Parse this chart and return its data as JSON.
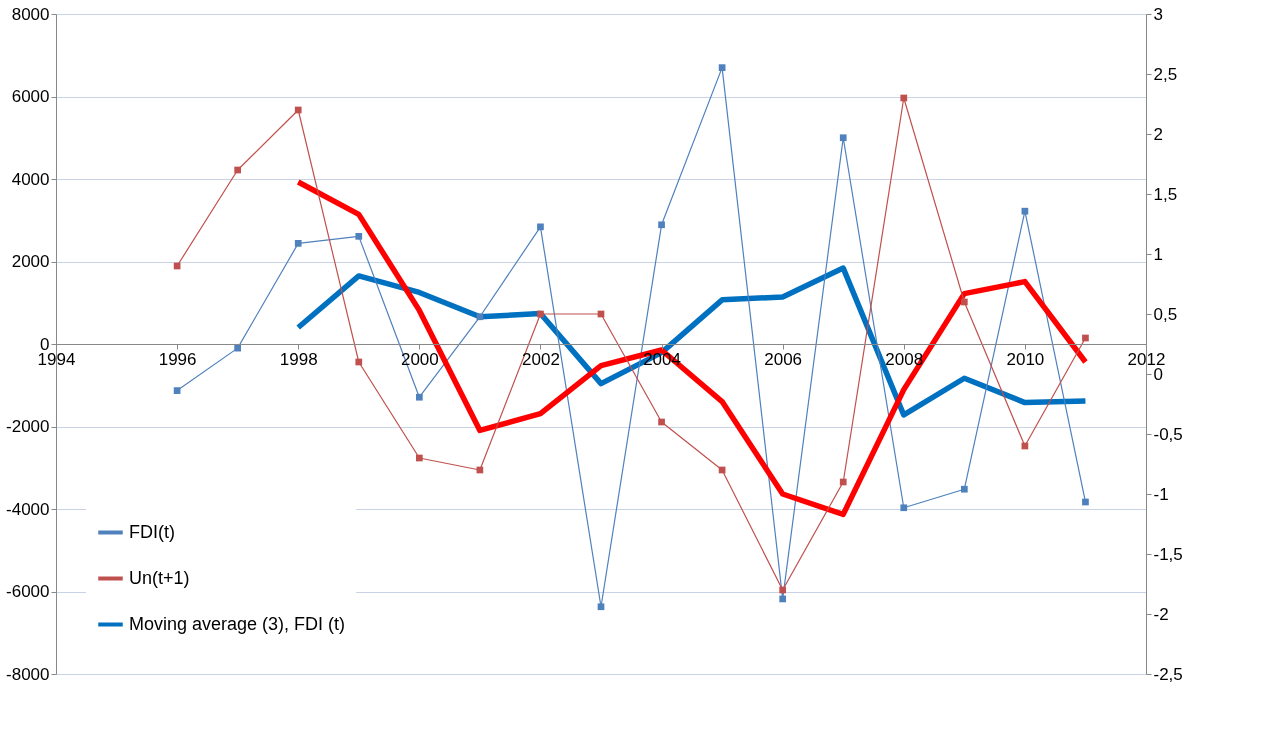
{
  "chart_data": {
    "type": "line",
    "x": [
      1996,
      1997,
      1998,
      1999,
      2000,
      2001,
      2002,
      2003,
      2004,
      2005,
      2006,
      2007,
      2008,
      2009,
      2010,
      2011
    ],
    "series": [
      {
        "name": "FDI(t)",
        "color": "#4f81bd",
        "marker": "square",
        "values": [
          -1130,
          -100,
          2440,
          2610,
          -1290,
          660,
          2840,
          -6370,
          2890,
          6700,
          -6180,
          5000,
          -3970,
          -3520,
          3220,
          -3830
        ]
      },
      {
        "name": "Un(t+1)",
        "color": "#c0504d",
        "marker": "square",
        "axis": "y2",
        "values": [
          0.9,
          1.7,
          2.2,
          0.1,
          -0.7,
          -0.8,
          0.5,
          0.5,
          -0.4,
          -0.8,
          -1.8,
          -0.9,
          2.3,
          0.6,
          -0.6,
          0.3
        ]
      },
      {
        "name": "Moving average (3), FDI (t)",
        "color": "#0070c0",
        "marker": "none",
        "x": [
          1998,
          1999,
          2000,
          2001,
          2002,
          2003,
          2004,
          2005,
          2006,
          2007,
          2008,
          2009,
          2010,
          2011
        ],
        "values": [
          400,
          1650,
          1250,
          660,
          740,
          -960,
          -210,
          1070,
          1140,
          1840,
          -1720,
          -830,
          -1420,
          -1380
        ]
      },
      {
        "color": "#ff0000",
        "marker": "none",
        "axis": "y2",
        "x": [
          1998,
          1999,
          2000,
          2001,
          2002,
          2003,
          2004,
          2005,
          2006,
          2007,
          2008,
          2009,
          2010,
          2011
        ],
        "values": [
          1.6,
          1.33,
          0.53,
          -0.47,
          -0.33,
          0.07,
          0.2,
          -0.23,
          -1.0,
          -1.17,
          -0.13,
          0.67,
          0.77,
          0.1
        ]
      }
    ],
    "xlim": [
      1994,
      2012
    ],
    "xticks": [
      1994,
      1996,
      1998,
      2000,
      2002,
      2004,
      2006,
      2008,
      2010,
      2012
    ],
    "ylim": [
      -8000,
      8000
    ],
    "yticks": [
      -8000,
      -6000,
      -4000,
      -2000,
      0,
      2000,
      4000,
      6000,
      8000
    ],
    "y2lim": [
      -2.5,
      3
    ],
    "y2ticks": [
      {
        "value": -2.5,
        "label": "-2,5"
      },
      -2,
      {
        "value": -1.5,
        "label": "-1,5"
      },
      -1,
      {
        "value": -0.5,
        "label": "-0,5"
      },
      0,
      {
        "value": 0.5,
        "label": "0,5"
      },
      1,
      {
        "value": 1.5,
        "label": "1,5"
      },
      2,
      {
        "value": 2.5,
        "label": "2,5"
      },
      3
    ],
    "grid": "y",
    "legend": "bottom left"
  }
}
